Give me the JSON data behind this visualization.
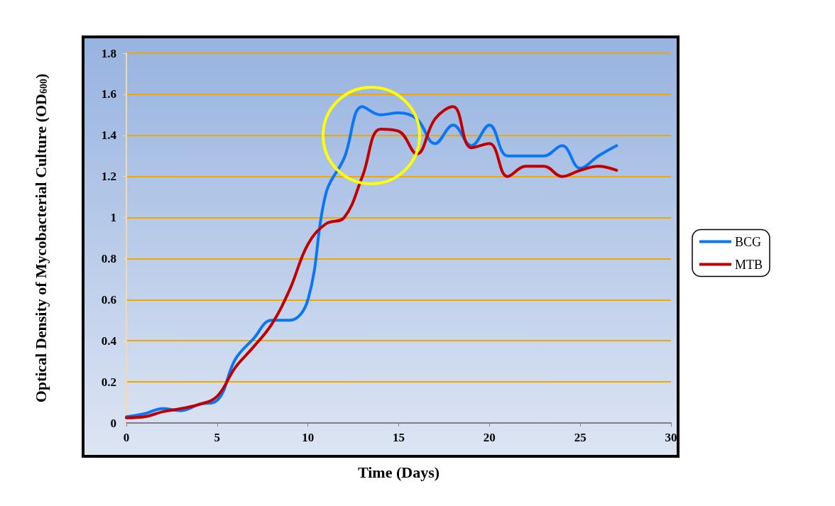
{
  "chart_data": {
    "type": "line",
    "xlabel": "Time (Days)",
    "ylabel": "Optical Density of Mycobacterial Culture (OD$_{600}$)",
    "x": [
      0,
      1,
      2,
      3,
      4,
      5,
      6,
      7,
      8,
      9,
      10,
      11,
      12,
      13,
      14,
      15,
      16,
      17,
      18,
      19,
      20,
      21,
      22,
      23,
      24,
      25,
      26,
      27
    ],
    "series": [
      {
        "name": "BCG",
        "color": "#0a76f6",
        "values": [
          0.03,
          0.045,
          0.07,
          0.06,
          0.09,
          0.11,
          0.31,
          0.41,
          0.5,
          0.5,
          0.6,
          1.12,
          1.29,
          1.54,
          1.5,
          1.51,
          1.48,
          1.36,
          1.45,
          1.35,
          1.45,
          1.3,
          1.3,
          1.3,
          1.35,
          1.24,
          1.3,
          1.35
        ]
      },
      {
        "name": "MTB",
        "color": "#c00000",
        "values": [
          0.025,
          0.03,
          0.055,
          0.07,
          0.09,
          0.13,
          0.27,
          0.37,
          0.48,
          0.65,
          0.87,
          0.97,
          1.0,
          1.2,
          1.43,
          1.42,
          1.31,
          1.48,
          1.54,
          1.34,
          1.36,
          1.2,
          1.25,
          1.25,
          1.2,
          1.23,
          1.25,
          1.23
        ]
      }
    ],
    "xlim": [
      0,
      30
    ],
    "xticks": [
      0,
      5,
      10,
      15,
      20,
      25,
      30
    ],
    "ylim": [
      0,
      1.8
    ],
    "yticks": [
      0,
      0.2,
      0.4,
      0.6,
      0.8,
      1,
      1.2,
      1.4,
      1.6,
      1.8
    ],
    "grid": "y",
    "legend": "right",
    "marker": "none",
    "line_style": "solid"
  }
}
